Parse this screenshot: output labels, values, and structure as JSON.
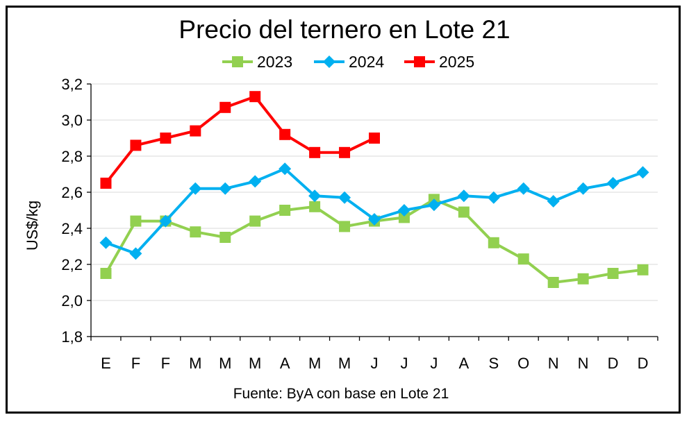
{
  "chart_data": {
    "type": "line",
    "title": "Precio del ternero en Lote 21",
    "ylabel": "US$/kg",
    "xlabel": "",
    "source": "Fuente: ByA con base en Lote 21",
    "categories": [
      "E",
      "F",
      "F",
      "M",
      "M",
      "M",
      "A",
      "M",
      "M",
      "J",
      "J",
      "J",
      "A",
      "S",
      "O",
      "N",
      "N",
      "D",
      "D"
    ],
    "ylim": [
      1.8,
      3.2
    ],
    "yticks": [
      "1,8",
      "2,0",
      "2,2",
      "2,4",
      "2,6",
      "2,8",
      "3,0",
      "3,2"
    ],
    "grid": "horizontal",
    "legend_position": "top",
    "series": [
      {
        "name": "2023",
        "color": "#92d050",
        "marker": "square",
        "values": [
          2.15,
          2.44,
          2.44,
          2.38,
          2.35,
          2.44,
          2.5,
          2.52,
          2.41,
          2.44,
          2.46,
          2.56,
          2.49,
          2.32,
          2.23,
          2.1,
          2.12,
          2.15,
          2.17
        ]
      },
      {
        "name": "2024",
        "color": "#00b0f0",
        "marker": "diamond",
        "values": [
          2.32,
          2.26,
          2.44,
          2.62,
          2.62,
          2.66,
          2.73,
          2.58,
          2.57,
          2.45,
          2.5,
          2.53,
          2.58,
          2.57,
          2.62,
          2.55,
          2.62,
          2.65,
          2.71
        ]
      },
      {
        "name": "2025",
        "color": "#ff0000",
        "marker": "square",
        "values": [
          2.65,
          2.86,
          2.9,
          2.94,
          3.07,
          3.13,
          2.92,
          2.82,
          2.82,
          2.9,
          null,
          null,
          null,
          null,
          null,
          null,
          null,
          null,
          null
        ]
      }
    ]
  }
}
